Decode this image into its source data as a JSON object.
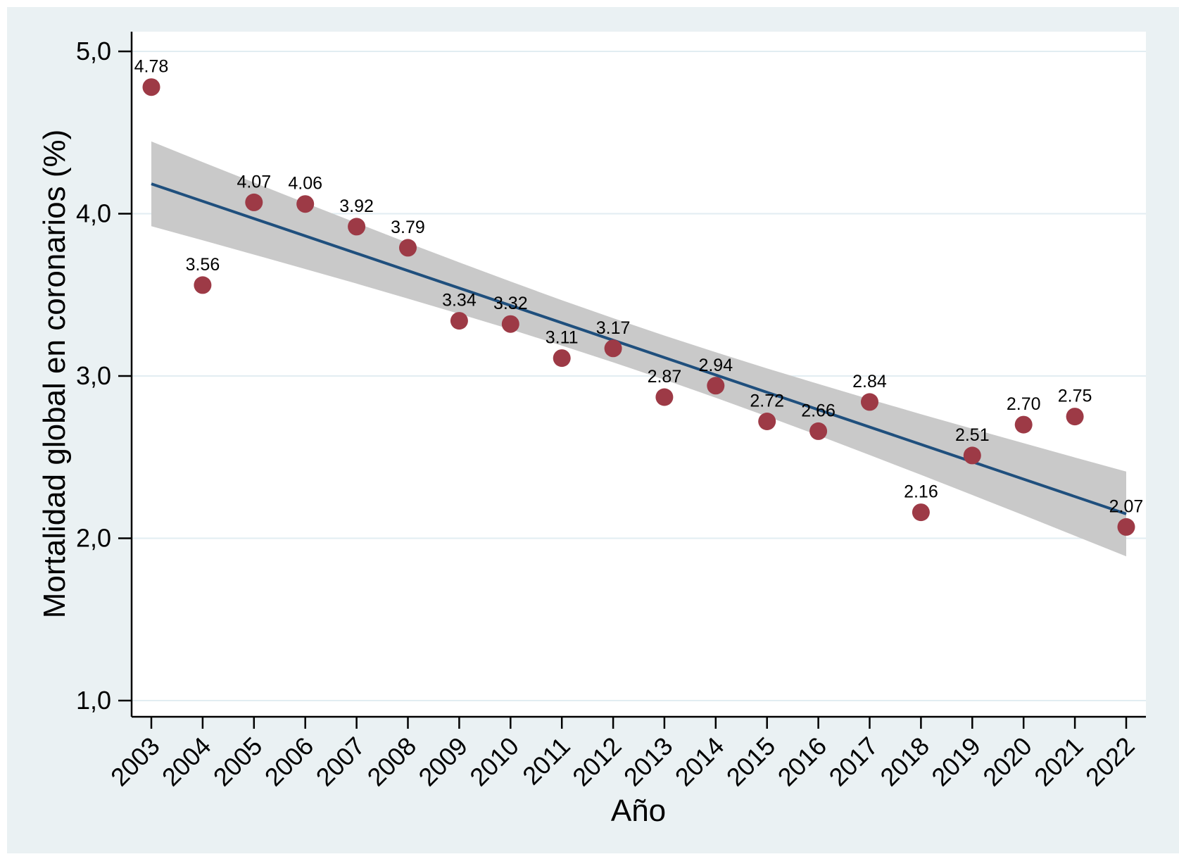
{
  "figure": {
    "x_axis_title": "Año",
    "y_axis_title": "Mortalidad global en coronarios (%)",
    "colors": {
      "outer_background": "#eaf1f3",
      "plot_background": "#ffffff",
      "gridline": "#e2edf2",
      "axis": "#000000",
      "marker": "#9d3a46",
      "fit_line": "#1f4f7d",
      "ci_band": "#c9c9c9",
      "text": "#000000"
    }
  },
  "chart_data": {
    "type": "scatter",
    "title": "",
    "xlabel": "Año",
    "ylabel": "Mortalidad global en coronarios (%)",
    "x": [
      2003,
      2004,
      2005,
      2006,
      2007,
      2008,
      2009,
      2010,
      2011,
      2012,
      2013,
      2014,
      2015,
      2016,
      2017,
      2018,
      2019,
      2020,
      2021,
      2022
    ],
    "values": [
      4.78,
      3.56,
      4.07,
      4.06,
      3.92,
      3.79,
      3.34,
      3.32,
      3.11,
      3.17,
      2.87,
      2.94,
      2.72,
      2.66,
      2.84,
      2.16,
      2.51,
      2.7,
      2.75,
      2.07
    ],
    "point_labels": [
      "4.78",
      "3.56",
      "4.07",
      "4.06",
      "3.92",
      "3.79",
      "3.34",
      "3.32",
      "3.11",
      "3.17",
      "2.87",
      "2.94",
      "2.72",
      "2.66",
      "2.84",
      "2.16",
      "2.51",
      "2.70",
      "2.75",
      "2.07"
    ],
    "x_tick_labels": [
      "2003",
      "2004",
      "2005",
      "2006",
      "2007",
      "2008",
      "2009",
      "2010",
      "2011",
      "2012",
      "2013",
      "2014",
      "2015",
      "2016",
      "2017",
      "2018",
      "2019",
      "2020",
      "2021",
      "2022"
    ],
    "y_ticks": [
      {
        "value": 1.0,
        "label": "1,0"
      },
      {
        "value": 2.0,
        "label": "2,0"
      },
      {
        "value": 3.0,
        "label": "3,0"
      },
      {
        "value": 4.0,
        "label": "4,0"
      },
      {
        "value": 5.0,
        "label": "5,0"
      }
    ],
    "ylim": [
      0.9,
      5.12
    ],
    "xlim": [
      2002.6,
      2022.4
    ],
    "grid": "horizontal-only",
    "legend_position": "none",
    "fit_line": {
      "x": [
        2003,
        2022
      ],
      "y": [
        4.184,
        2.15
      ]
    },
    "ci_band": {
      "x": [
        2003,
        2004,
        2005,
        2006,
        2007,
        2008,
        2009,
        2010,
        2011,
        2012,
        2013,
        2014,
        2015,
        2016,
        2017,
        2018,
        2019,
        2020,
        2021,
        2022
      ],
      "upper": [
        4.445,
        4.318,
        4.192,
        4.067,
        3.943,
        3.82,
        3.7,
        3.582,
        3.467,
        3.356,
        3.249,
        3.146,
        3.047,
        2.951,
        2.857,
        2.765,
        2.675,
        2.586,
        2.498,
        2.411
      ],
      "lower": [
        3.923,
        3.836,
        3.748,
        3.659,
        3.569,
        3.477,
        3.383,
        3.287,
        3.187,
        3.084,
        2.977,
        2.866,
        2.751,
        2.634,
        2.513,
        2.391,
        2.267,
        2.142,
        2.015,
        1.889
      ]
    }
  }
}
